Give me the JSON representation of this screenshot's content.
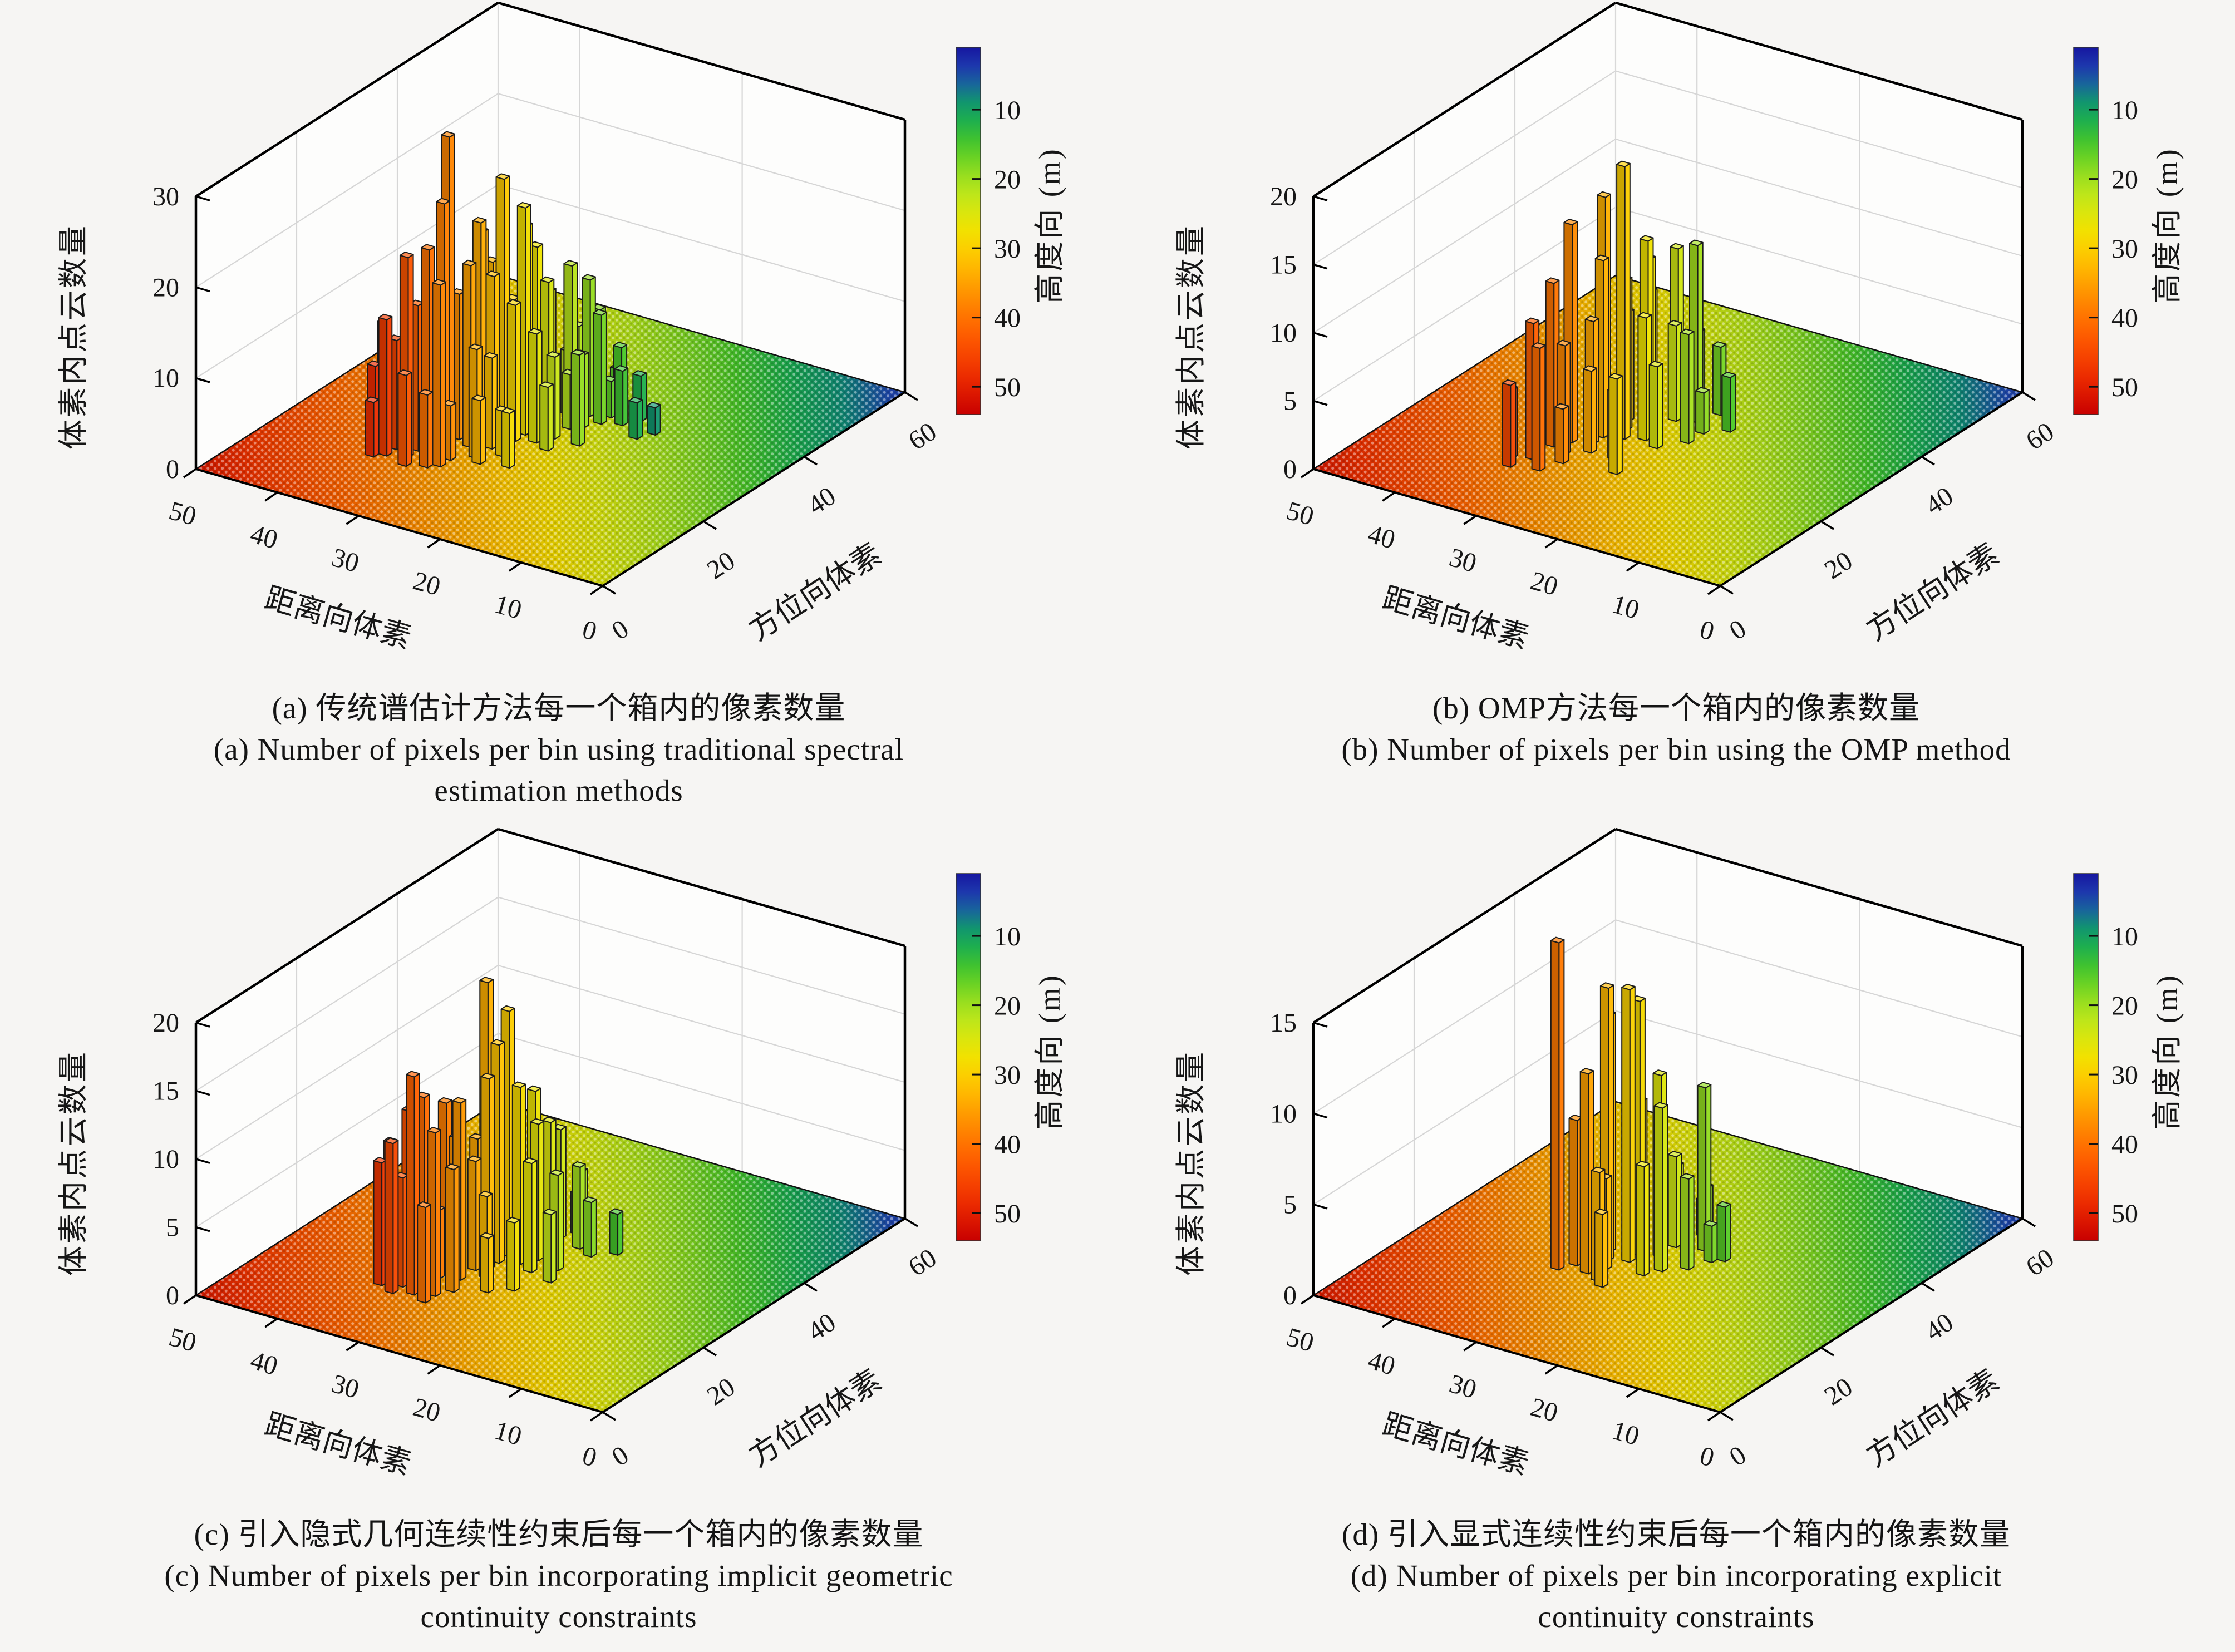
{
  "figure": {
    "background": "#f6f5f3",
    "text_color": "#161616",
    "box_edge_color": "#000000",
    "grid_color": "#d6d6d6"
  },
  "colormap_height_m": [
    [
      54,
      "#c80000"
    ],
    [
      48,
      "#f03000"
    ],
    [
      42,
      "#ff6000"
    ],
    [
      36,
      "#ff9800"
    ],
    [
      31,
      "#ffc800"
    ],
    [
      27,
      "#f0e400"
    ],
    [
      23,
      "#c8e818"
    ],
    [
      19,
      "#90dc20"
    ],
    [
      15,
      "#48c828"
    ],
    [
      11,
      "#16aa55"
    ],
    [
      8,
      "#0e8c7a"
    ],
    [
      5,
      "#2048b4"
    ],
    [
      1,
      "#1616a0"
    ]
  ],
  "terrain": {
    "description": "dotted ground surface colored by height: ~50 m (red) near range 50 / azimuth 0 corner, ~5 m (navy blue) near azimuth 60 / range 0 corner",
    "elev_model": {
      "base": 8,
      "per_azimuth": -0.55,
      "per_range": 1.3,
      "clamp": [
        4,
        51
      ]
    }
  },
  "chart_data": [
    {
      "type": "bar",
      "subtype": "3d-bar-histogram",
      "panel": "a",
      "caption_zh": "(a) 传统谱估计方法每一个箱内的像素数量",
      "caption_en_1": "(a) Number of pixels per bin using traditional spectral",
      "caption_en_2": "estimation methods",
      "xlabel": "距离向体素",
      "ylabel": "方位向体素",
      "zlabel": "体素内点云数量",
      "xlim": [
        0,
        50
      ],
      "ylim": [
        0,
        60
      ],
      "zlim": [
        0,
        30
      ],
      "x_ticks": [
        50,
        40,
        30,
        20,
        10,
        0
      ],
      "y_ticks": [
        0,
        20,
        40,
        60
      ],
      "z_ticks": [
        0,
        10,
        20,
        30
      ],
      "colorbar": {
        "label": "高度向 (m)",
        "ticks": [
          10,
          20,
          30,
          40,
          50
        ],
        "value_top": 1,
        "value_bottom": 54
      },
      "bar_format": [
        "azimuth",
        "range",
        "count"
      ],
      "bars": [
        [
          14,
          33,
          10
        ],
        [
          15,
          36,
          15
        ],
        [
          15,
          31,
          8
        ],
        [
          16,
          34,
          22
        ],
        [
          16,
          38,
          9
        ],
        [
          17,
          32,
          23
        ],
        [
          17,
          36,
          12
        ],
        [
          18,
          34,
          16
        ],
        [
          18,
          30,
          6
        ],
        [
          19,
          37,
          10
        ],
        [
          19,
          33,
          18
        ],
        [
          14,
          37,
          6
        ],
        [
          18,
          38,
          13
        ],
        [
          16,
          30,
          20
        ],
        [
          20,
          32,
          27
        ],
        [
          21,
          32,
          34
        ],
        [
          20,
          28,
          12
        ],
        [
          21,
          35,
          8
        ],
        [
          22,
          30,
          20
        ],
        [
          22,
          34,
          14
        ],
        [
          23,
          28,
          10
        ],
        [
          23,
          32,
          16
        ],
        [
          24,
          30,
          24
        ],
        [
          24,
          34,
          11
        ],
        [
          19,
          27,
          7
        ],
        [
          25,
          29,
          18
        ],
        [
          25,
          33,
          9
        ],
        [
          22,
          26,
          5
        ],
        [
          20,
          24,
          6
        ],
        [
          26,
          31,
          22
        ],
        [
          26,
          27,
          15
        ],
        [
          27,
          29,
          28
        ],
        [
          27,
          25,
          12
        ],
        [
          28,
          31,
          18
        ],
        [
          28,
          27,
          25
        ],
        [
          29,
          29,
          14
        ],
        [
          29,
          24,
          9
        ],
        [
          30,
          28,
          22
        ],
        [
          30,
          31,
          12
        ],
        [
          31,
          26,
          16
        ],
        [
          31,
          30,
          8
        ],
        [
          32,
          28,
          19
        ],
        [
          26,
          23,
          7
        ],
        [
          29,
          21,
          10
        ],
        [
          32,
          24,
          6
        ],
        [
          33,
          27,
          14
        ],
        [
          33,
          23,
          8
        ],
        [
          34,
          25,
          17
        ],
        [
          34,
          29,
          10
        ],
        [
          35,
          22,
          12
        ],
        [
          35,
          26,
          7
        ],
        [
          36,
          24,
          15
        ],
        [
          36,
          20,
          6
        ],
        [
          37,
          26,
          9
        ],
        [
          37,
          22,
          4
        ],
        [
          38,
          24,
          11
        ],
        [
          38,
          19,
          5
        ],
        [
          39,
          22,
          7
        ],
        [
          34,
          17,
          4
        ],
        [
          36,
          16,
          3
        ],
        [
          40,
          23,
          4
        ]
      ]
    },
    {
      "type": "bar",
      "subtype": "3d-bar-histogram",
      "panel": "b",
      "caption_zh": "(b) OMP方法每一个箱内的像素数量",
      "caption_en_1": "(b) Number of pixels per bin using the OMP method",
      "caption_en_2": "",
      "xlabel": "距离向体素",
      "ylabel": "方位向体素",
      "zlabel": "体素内点云数量",
      "xlim": [
        0,
        50
      ],
      "ylim": [
        0,
        60
      ],
      "zlim": [
        0,
        20
      ],
      "x_ticks": [
        50,
        40,
        30,
        20,
        10,
        0
      ],
      "y_ticks": [
        0,
        20,
        40,
        60
      ],
      "z_ticks": [
        0,
        5,
        10,
        15,
        20
      ],
      "colorbar": {
        "label": "高度向 (m)",
        "ticks": [
          10,
          20,
          30,
          40,
          50
        ],
        "value_top": 1,
        "value_bottom": 54
      },
      "bar_format": [
        "azimuth",
        "range",
        "count"
      ],
      "bars": [
        [
          13,
          34,
          6
        ],
        [
          14,
          31,
          9
        ],
        [
          15,
          35,
          5
        ],
        [
          16,
          33,
          10
        ],
        [
          17,
          30,
          4
        ],
        [
          18,
          24,
          7
        ],
        [
          19,
          31,
          8
        ],
        [
          20,
          33,
          12
        ],
        [
          21,
          29,
          6
        ],
        [
          22,
          32,
          16
        ],
        [
          23,
          30,
          9
        ],
        [
          21,
          26,
          5
        ],
        [
          25,
          30,
          13
        ],
        [
          26,
          28,
          20
        ],
        [
          27,
          31,
          17
        ],
        [
          27,
          26,
          9
        ],
        [
          28,
          29,
          11
        ],
        [
          29,
          27,
          14
        ],
        [
          30,
          30,
          8
        ],
        [
          26,
          24,
          6
        ],
        [
          29,
          22,
          8
        ],
        [
          31,
          28,
          12
        ],
        [
          33,
          26,
          7
        ],
        [
          33,
          29,
          9
        ],
        [
          34,
          24,
          13
        ],
        [
          35,
          27,
          12
        ],
        [
          36,
          25,
          6
        ],
        [
          34,
          20,
          4
        ],
        [
          37,
          23,
          5
        ],
        [
          32,
          22,
          3
        ]
      ]
    },
    {
      "type": "bar",
      "subtype": "3d-bar-histogram",
      "panel": "c",
      "caption_zh": "(c) 引入隐式几何连续性约束后每一个箱内的像素数量",
      "caption_en_1": "(c) Number of pixels per bin incorporating implicit geometric",
      "caption_en_2": "continuity constraints",
      "xlabel": "距离向体素",
      "ylabel": "方位向体素",
      "zlabel": "体素内点云数量",
      "xlim": [
        0,
        50
      ],
      "ylim": [
        0,
        60
      ],
      "zlim": [
        0,
        20
      ],
      "x_ticks": [
        50,
        40,
        30,
        20,
        10,
        0
      ],
      "y_ticks": [
        0,
        20,
        40,
        60
      ],
      "z_ticks": [
        0,
        5,
        10,
        15,
        20
      ],
      "colorbar": {
        "label": "高度向 (m)",
        "ticks": [
          10,
          20,
          30,
          40,
          50
        ],
        "value_top": 1,
        "value_bottom": 54
      },
      "bar_format": [
        "azimuth",
        "range",
        "count"
      ],
      "bars": [
        [
          13,
          34,
          11
        ],
        [
          14,
          32,
          16
        ],
        [
          14,
          36,
          9
        ],
        [
          15,
          30,
          12
        ],
        [
          15,
          34,
          8
        ],
        [
          16,
          32,
          14
        ],
        [
          16,
          36,
          10
        ],
        [
          17,
          33,
          6
        ],
        [
          17,
          29,
          9
        ],
        [
          13,
          30,
          7
        ],
        [
          18,
          35,
          12
        ],
        [
          19,
          32,
          5
        ],
        [
          20,
          30,
          13
        ],
        [
          20,
          34,
          8
        ],
        [
          21,
          31,
          10
        ],
        [
          22,
          28,
          6
        ],
        [
          22,
          33,
          12
        ],
        [
          23,
          30,
          8
        ],
        [
          19,
          26,
          4
        ],
        [
          24,
          29,
          14
        ],
        [
          21,
          24,
          5
        ],
        [
          24,
          33,
          7
        ],
        [
          25,
          31,
          9
        ],
        [
          26,
          29,
          16
        ],
        [
          26,
          25,
          8
        ],
        [
          27,
          31,
          20
        ],
        [
          27,
          27,
          13
        ],
        [
          28,
          29,
          18
        ],
        [
          29,
          26,
          10
        ],
        [
          29,
          30,
          8
        ],
        [
          30,
          27,
          12
        ],
        [
          31,
          29,
          6
        ],
        [
          28,
          23,
          7
        ],
        [
          25,
          22,
          5
        ],
        [
          33,
          27,
          9
        ],
        [
          34,
          24,
          6
        ],
        [
          35,
          27,
          8
        ],
        [
          33,
          22,
          4
        ],
        [
          36,
          25,
          5
        ],
        [
          37,
          26,
          3
        ],
        [
          35,
          20,
          3
        ]
      ]
    },
    {
      "type": "bar",
      "subtype": "3d-bar-histogram",
      "panel": "d",
      "caption_zh": "(d) 引入显式连续性约束后每一个箱内的像素数量",
      "caption_en_1": "(d) Number of pixels per bin incorporating explicit",
      "caption_en_2": "continuity constraints",
      "xlabel": "距离向体素",
      "ylabel": "方位向体素",
      "zlabel": "体素内点云数量",
      "xlim": [
        0,
        50
      ],
      "ylim": [
        0,
        60
      ],
      "zlim": [
        0,
        15
      ],
      "x_ticks": [
        50,
        40,
        30,
        20,
        10,
        0
      ],
      "y_ticks": [
        0,
        20,
        40,
        60
      ],
      "z_ticks": [
        0,
        5,
        10,
        15
      ],
      "colorbar": {
        "label": "高度向 (m)",
        "ticks": [
          10,
          20,
          30,
          40,
          50
        ],
        "value_top": 1,
        "value_bottom": 54
      },
      "bar_format": [
        "azimuth",
        "range",
        "count"
      ],
      "bars": [
        [
          21,
          33,
          18
        ],
        [
          22,
          30,
          11
        ],
        [
          21,
          28,
          6
        ],
        [
          23,
          32,
          8
        ],
        [
          20,
          27,
          4
        ],
        [
          24,
          29,
          5
        ],
        [
          26,
          30,
          15
        ],
        [
          27,
          28,
          15
        ],
        [
          28,
          31,
          13
        ],
        [
          27,
          24,
          9
        ],
        [
          29,
          28,
          14
        ],
        [
          30,
          26,
          10
        ],
        [
          25,
          25,
          6
        ],
        [
          29,
          22,
          5
        ],
        [
          31,
          29,
          8
        ],
        [
          33,
          26,
          5
        ],
        [
          34,
          23,
          9
        ],
        [
          35,
          27,
          4
        ],
        [
          33,
          20,
          3
        ],
        [
          36,
          24,
          3
        ],
        [
          32,
          21,
          2
        ],
        [
          37,
          25,
          2
        ]
      ]
    }
  ]
}
